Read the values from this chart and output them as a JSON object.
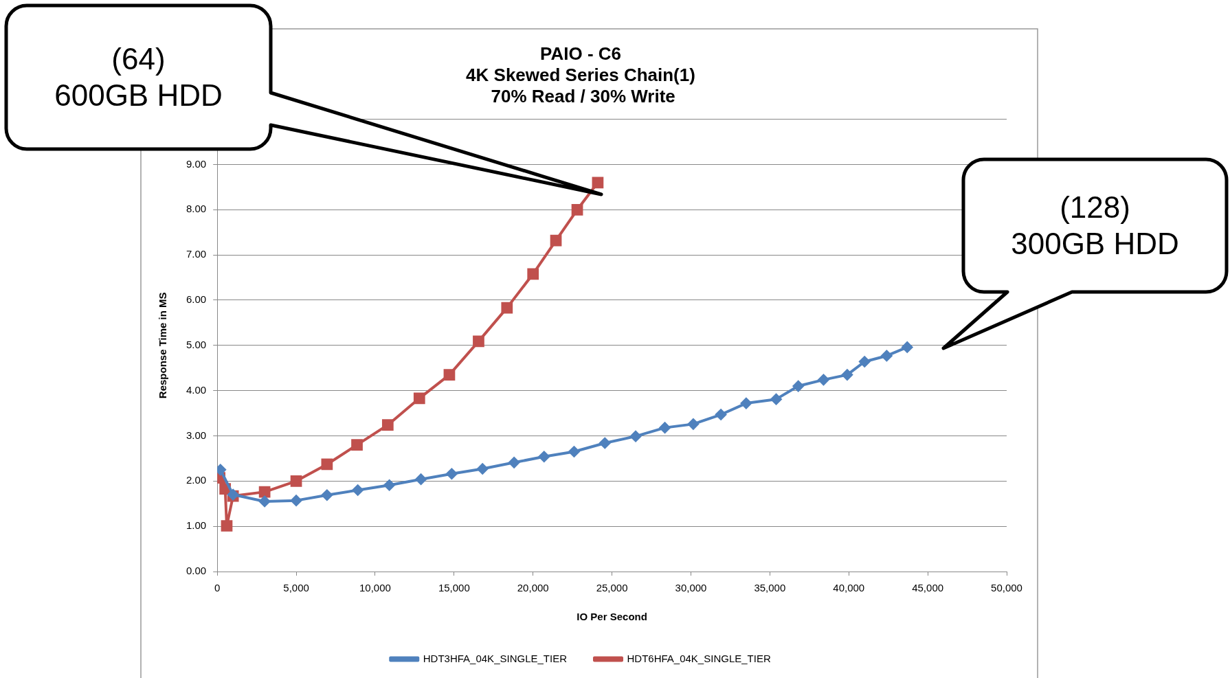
{
  "chart_data": {
    "type": "line",
    "title": "PAIO - C6\n4K Skewed Series Chain(1)\n 70% Read / 30% Write",
    "xlabel": "IO Per Second",
    "ylabel": "Response Time in MS",
    "xlim": [
      0,
      50000
    ],
    "xticks": [
      {
        "value": 0,
        "label": "0"
      },
      {
        "value": 5000,
        "label": "5,000"
      },
      {
        "value": 10000,
        "label": "10,000"
      },
      {
        "value": 15000,
        "label": "15,000"
      },
      {
        "value": 20000,
        "label": "20,000"
      },
      {
        "value": 25000,
        "label": "25,000"
      },
      {
        "value": 30000,
        "label": "30,000"
      },
      {
        "value": 35000,
        "label": "35,000"
      },
      {
        "value": 40000,
        "label": "40,000"
      },
      {
        "value": 45000,
        "label": "45,000"
      },
      {
        "value": 50000,
        "label": "50,000"
      }
    ],
    "ylim": [
      0,
      10
    ],
    "yticks": [
      {
        "value": 0,
        "label": "0.00"
      },
      {
        "value": 1,
        "label": "1.00"
      },
      {
        "value": 2,
        "label": "2.00"
      },
      {
        "value": 3,
        "label": "3.00"
      },
      {
        "value": 4,
        "label": "4.00"
      },
      {
        "value": 5,
        "label": "5.00"
      },
      {
        "value": 6,
        "label": "6.00"
      },
      {
        "value": 7,
        "label": "7.00"
      },
      {
        "value": 8,
        "label": "8.00"
      },
      {
        "value": 9,
        "label": "9.00"
      },
      {
        "value": 10,
        "label": null
      }
    ],
    "grid": "y",
    "legend": "bottom",
    "line_style": "solid",
    "series": [
      {
        "name": "HDT3HFA_04K_SINGLE_TIER",
        "color": "#4f81bd",
        "marker": "diamond",
        "x": [
          200,
          1000,
          3000,
          5000,
          6950,
          8900,
          10900,
          12900,
          14850,
          16800,
          18800,
          20700,
          22600,
          24550,
          26500,
          28350,
          30150,
          31900,
          33500,
          35400,
          36800,
          38400,
          39900,
          41000,
          42400,
          43700
        ],
        "values": [
          2.25,
          1.7,
          1.55,
          1.57,
          1.69,
          1.8,
          1.91,
          2.04,
          2.16,
          2.27,
          2.41,
          2.54,
          2.65,
          2.84,
          2.99,
          3.18,
          3.26,
          3.47,
          3.72,
          3.81,
          4.1,
          4.24,
          4.35,
          4.64,
          4.77,
          4.96
        ]
      },
      {
        "name": "HDT6HFA_04K_SINGLE_TIER",
        "color": "#c0504d",
        "marker": "square",
        "x": [
          150,
          500,
          600,
          1000,
          3000,
          5000,
          6950,
          8850,
          10800,
          12800,
          14700,
          16550,
          18350,
          20000,
          21450,
          22800,
          24100
        ],
        "values": [
          2.07,
          1.83,
          1.01,
          1.67,
          1.76,
          2.0,
          2.37,
          2.8,
          3.24,
          3.83,
          4.35,
          5.09,
          5.83,
          6.58,
          7.32,
          8.0,
          8.6
        ]
      }
    ],
    "annotations": [
      "(64)\n600GB HDD",
      "(128)\n300GB HDD"
    ]
  }
}
